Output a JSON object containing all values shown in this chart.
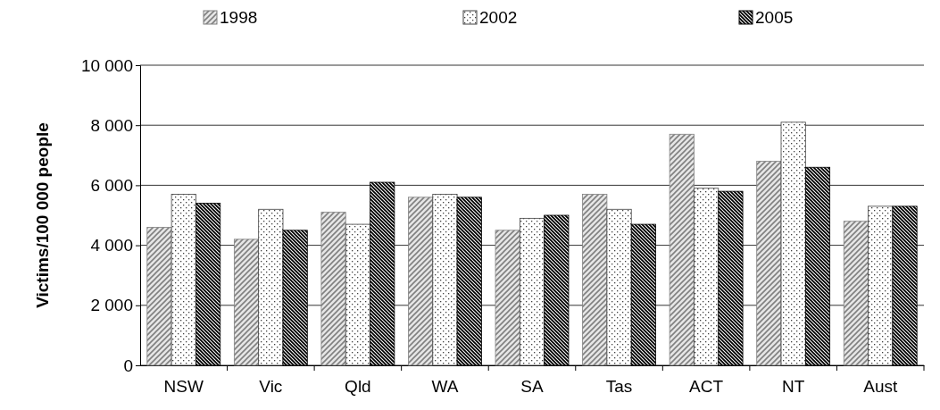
{
  "chart_data": {
    "type": "bar",
    "ylabel": "Victims/100 000 people",
    "categories": [
      "NSW",
      "Vic",
      "Qld",
      "WA",
      "SA",
      "Tas",
      "ACT",
      "NT",
      "Aust"
    ],
    "series": [
      {
        "name": "1998",
        "color": "#808080",
        "values": [
          4600,
          4200,
          5100,
          5600,
          4500,
          5700,
          7700,
          6800,
          4800
        ]
      },
      {
        "name": "2002",
        "color": "#404040",
        "values": [
          5700,
          5200,
          4700,
          5700,
          4900,
          5200,
          5900,
          8100,
          5300
        ]
      },
      {
        "name": "2005",
        "color": "#000000",
        "values": [
          5400,
          4500,
          6100,
          5600,
          5000,
          4700,
          5800,
          6600,
          5300
        ]
      }
    ],
    "ylim": [
      0,
      10000
    ],
    "yticks": [
      0,
      {
        "value": 2000,
        "label": "2 000"
      },
      {
        "value": 4000,
        "label": "4 000"
      },
      {
        "value": 6000,
        "label": "6 000"
      },
      {
        "value": 8000,
        "label": "8 000"
      },
      {
        "value": 10000,
        "label": "10 000"
      }
    ],
    "grid": "y",
    "legend": "top"
  }
}
